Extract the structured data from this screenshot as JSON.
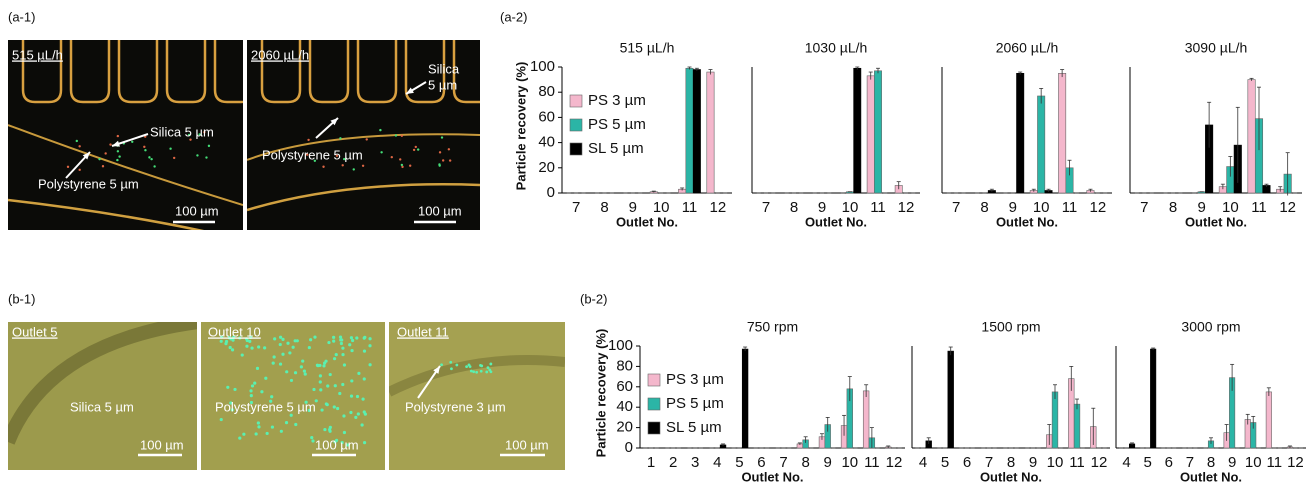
{
  "panel_labels": [
    "(a-1)",
    "(a-2)",
    "(b-1)",
    "(b-2)"
  ],
  "images": [
    {
      "texts": [
        "515 µL/h",
        "Silica 5 µm",
        "Polystyrene 5 µm",
        "100 µm"
      ]
    },
    {
      "texts": [
        "2060 µL/h",
        "Silica",
        "5 µm",
        "Polystyrene 5 µm",
        "100 µm"
      ]
    },
    {
      "texts": [
        "Outlet 5",
        "Silica 5 µm",
        "100 µm"
      ]
    },
    {
      "texts": [
        "Outlet 10",
        "Polystyrene 5 µm",
        "100 µm"
      ]
    },
    {
      "texts": [
        "Outlet 11",
        "Polystyrene 3 µm",
        "100 µm"
      ]
    }
  ],
  "chart_data": [
    {
      "type": "bar",
      "title": "515 µL/h",
      "ylabel": "Particle recovery (%)",
      "xlabel": "Outlet No.",
      "legend": "left",
      "categories": [
        "7",
        "8",
        "9",
        "10",
        "11",
        "12"
      ],
      "ylim": [
        0,
        100
      ],
      "yticks": [
        0,
        20,
        40,
        60,
        80,
        100
      ],
      "series": [
        {
          "name": "PS 3 µm",
          "color": "#f4b7cc",
          "values": [
            0,
            0,
            0,
            1,
            3,
            96
          ],
          "errors": [
            0,
            0,
            0,
            0.5,
            1,
            2
          ]
        },
        {
          "name": "PS 5 µm",
          "color": "#2bb5a6",
          "values": [
            0,
            0,
            0,
            0,
            99,
            0
          ],
          "errors": [
            0,
            0,
            0,
            0,
            1,
            0
          ]
        },
        {
          "name": "SL 5 µm",
          "color": "#000000",
          "values": [
            0,
            0,
            0,
            0,
            98,
            0
          ],
          "errors": [
            0,
            0,
            0,
            0,
            1,
            0
          ]
        }
      ]
    },
    {
      "type": "bar",
      "title": "1030 µL/h",
      "xlabel": "Outlet No.",
      "categories": [
        "7",
        "8",
        "9",
        "10",
        "11",
        "12"
      ],
      "ylim": [
        0,
        100
      ],
      "series": [
        {
          "name": "PS 3 µm",
          "color": "#f4b7cc",
          "values": [
            0,
            0,
            0,
            0,
            93,
            6
          ],
          "errors": [
            0,
            0,
            0,
            0,
            3,
            3
          ]
        },
        {
          "name": "PS 5 µm",
          "color": "#2bb5a6",
          "values": [
            0,
            0,
            0,
            1,
            97,
            0
          ],
          "errors": [
            0,
            0,
            0,
            0,
            2,
            0
          ]
        },
        {
          "name": "SL 5 µm",
          "color": "#000000",
          "values": [
            0,
            0,
            0,
            99,
            0,
            0
          ],
          "errors": [
            0,
            0,
            0,
            1,
            0,
            0
          ]
        }
      ]
    },
    {
      "type": "bar",
      "title": "2060 µL/h",
      "xlabel": "Outlet No.",
      "categories": [
        "7",
        "8",
        "9",
        "10",
        "11",
        "12"
      ],
      "ylim": [
        0,
        100
      ],
      "series": [
        {
          "name": "PS 3 µm",
          "color": "#f4b7cc",
          "values": [
            0,
            0,
            0,
            2,
            95,
            2
          ],
          "errors": [
            0,
            0,
            0,
            1,
            3,
            1
          ]
        },
        {
          "name": "PS 5 µm",
          "color": "#2bb5a6",
          "values": [
            0,
            0,
            0,
            77,
            20,
            0
          ],
          "errors": [
            0,
            0,
            0,
            6,
            6,
            0
          ]
        },
        {
          "name": "SL 5 µm",
          "color": "#000000",
          "values": [
            0,
            2,
            95,
            2,
            0,
            0
          ],
          "errors": [
            0,
            1,
            1,
            1,
            0,
            0
          ]
        }
      ]
    },
    {
      "type": "bar",
      "title": "3090 µL/h",
      "xlabel": "Outlet No.",
      "categories": [
        "7",
        "8",
        "9",
        "10",
        "11",
        "12"
      ],
      "ylim": [
        0,
        100
      ],
      "series": [
        {
          "name": "PS 3 µm",
          "color": "#f4b7cc",
          "values": [
            0,
            0,
            0,
            5,
            90,
            3
          ],
          "errors": [
            0,
            0,
            0,
            2,
            1,
            2
          ]
        },
        {
          "name": "PS 5 µm",
          "color": "#2bb5a6",
          "values": [
            0,
            0,
            1,
            21,
            59,
            15
          ],
          "errors": [
            0,
            0,
            0,
            8,
            25,
            17
          ]
        },
        {
          "name": "SL 5 µm",
          "color": "#000000",
          "values": [
            0,
            0,
            54,
            38,
            6,
            0
          ],
          "errors": [
            0,
            0,
            18,
            30,
            1,
            0
          ]
        }
      ]
    },
    {
      "type": "bar",
      "title": "750 rpm",
      "ylabel": "Particle recovery (%)",
      "xlabel": "Outlet No.",
      "legend": "left",
      "categories": [
        "1",
        "2",
        "3",
        "4",
        "5",
        "6",
        "7",
        "8",
        "9",
        "10",
        "11",
        "12"
      ],
      "ylim": [
        0,
        100
      ],
      "yticks": [
        0,
        20,
        40,
        60,
        80,
        100
      ],
      "series": [
        {
          "name": "PS 3 µm",
          "color": "#f4b7cc",
          "values": [
            0,
            0,
            0,
            0,
            0,
            0,
            0,
            4,
            11,
            22,
            56,
            1
          ],
          "errors": [
            0,
            0,
            0,
            0,
            0,
            0,
            0,
            1,
            3,
            10,
            6,
            1
          ]
        },
        {
          "name": "PS 5 µm",
          "color": "#2bb5a6",
          "values": [
            0,
            0,
            0,
            0,
            0,
            0,
            0,
            8,
            23,
            58,
            10,
            0
          ],
          "errors": [
            0,
            0,
            0,
            0,
            0,
            0,
            0,
            3,
            7,
            12,
            10,
            0
          ]
        },
        {
          "name": "SL 5 µm",
          "color": "#000000",
          "values": [
            0,
            0,
            0,
            3,
            97,
            0,
            0,
            0,
            0,
            0,
            0,
            0
          ],
          "errors": [
            0,
            0,
            0,
            1,
            2,
            0,
            0,
            0,
            0,
            0,
            0,
            0
          ]
        }
      ]
    },
    {
      "type": "bar",
      "title": "1500 rpm",
      "xlabel": "Outlet No.",
      "categories": [
        "4",
        "5",
        "6",
        "7",
        "8",
        "9",
        "10",
        "11",
        "12"
      ],
      "ylim": [
        0,
        100
      ],
      "series": [
        {
          "name": "PS 3 µm",
          "color": "#f4b7cc",
          "values": [
            0,
            0,
            0,
            0,
            0,
            0,
            13,
            68,
            21
          ],
          "errors": [
            0,
            0,
            0,
            0,
            0,
            0,
            10,
            12,
            18
          ]
        },
        {
          "name": "PS 5 µm",
          "color": "#2bb5a6",
          "values": [
            0,
            0,
            0,
            0,
            0,
            0,
            55,
            43,
            0
          ],
          "errors": [
            0,
            0,
            0,
            0,
            0,
            0,
            7,
            5,
            0
          ]
        },
        {
          "name": "SL 5 µm",
          "color": "#000000",
          "values": [
            7,
            95,
            0,
            0,
            0,
            0,
            0,
            0,
            0
          ],
          "errors": [
            3,
            4,
            0,
            0,
            0,
            0,
            0,
            0,
            0
          ]
        }
      ]
    },
    {
      "type": "bar",
      "title": "3000 rpm",
      "xlabel": "Outlet No.",
      "categories": [
        "4",
        "5",
        "6",
        "7",
        "8",
        "9",
        "10",
        "11",
        "12"
      ],
      "ylim": [
        0,
        100
      ],
      "series": [
        {
          "name": "PS 3 µm",
          "color": "#f4b7cc",
          "values": [
            0,
            0,
            0,
            0,
            0,
            15,
            28,
            55,
            1
          ],
          "errors": [
            0,
            0,
            0,
            0,
            0,
            8,
            5,
            4,
            1
          ]
        },
        {
          "name": "PS 5 µm",
          "color": "#2bb5a6",
          "values": [
            0,
            0,
            0,
            0,
            7,
            69,
            25,
            0,
            0
          ],
          "errors": [
            0,
            0,
            0,
            0,
            3,
            13,
            6,
            0,
            0
          ]
        },
        {
          "name": "SL 5 µm",
          "color": "#000000",
          "values": [
            4,
            97,
            0,
            0,
            0,
            0,
            0,
            0,
            0
          ],
          "errors": [
            1,
            1,
            0,
            0,
            0,
            0,
            0,
            0,
            0
          ]
        }
      ]
    }
  ]
}
